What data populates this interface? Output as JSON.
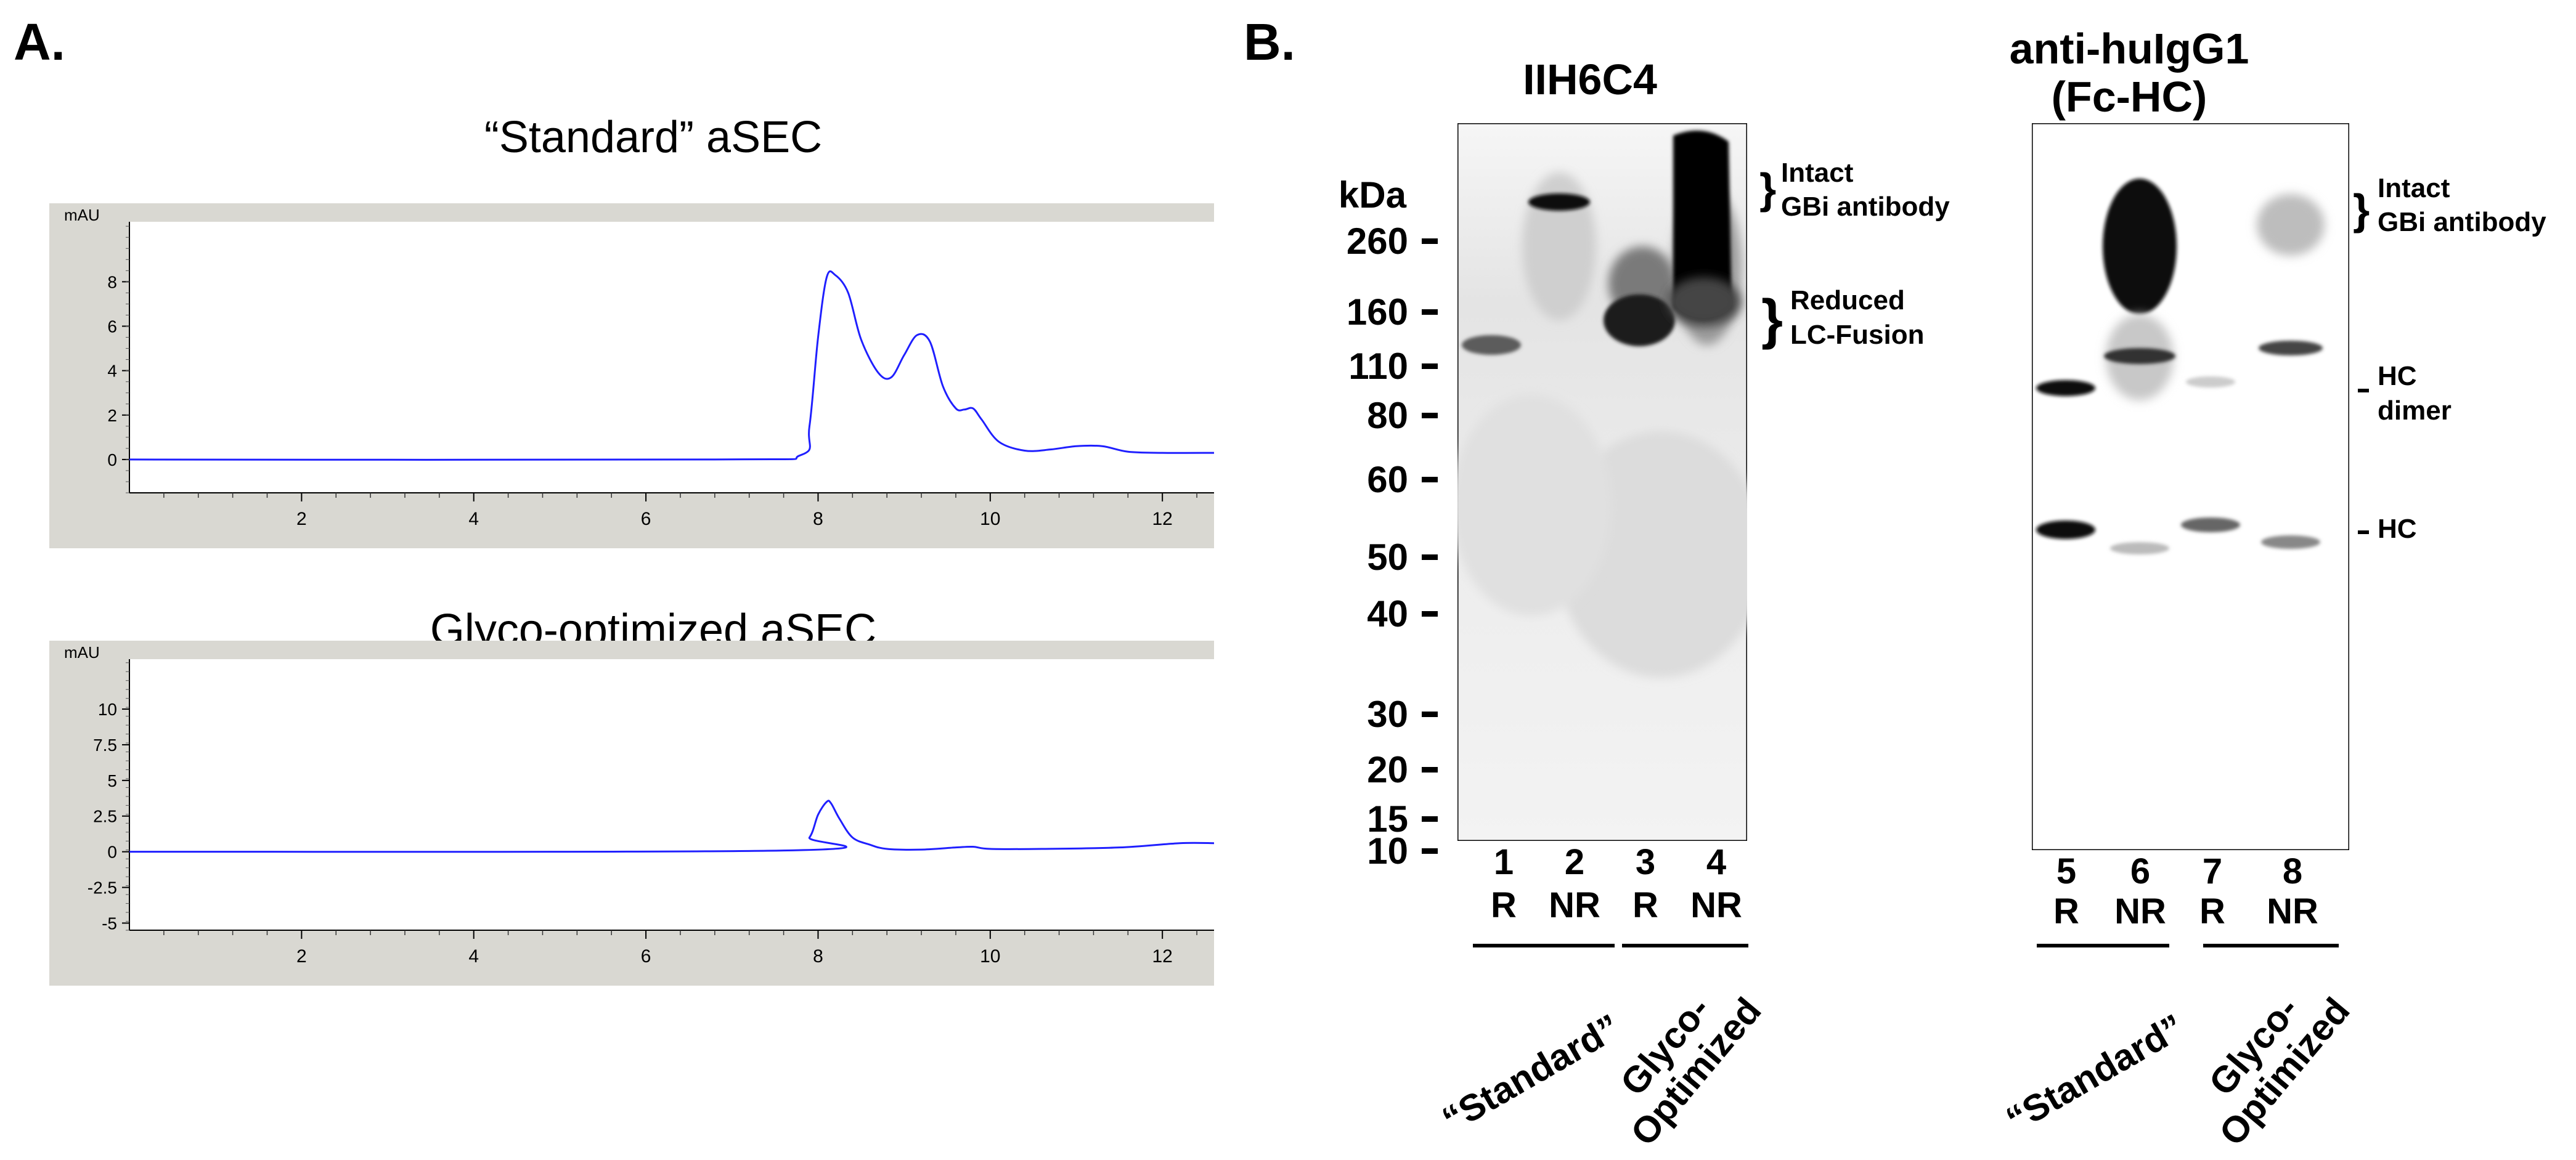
{
  "panel_a": {
    "label": "A.",
    "chart_data": [
      {
        "type": "line",
        "title": "“Standard” aSEC",
        "ylabel": "mAU",
        "xlabel": "",
        "xlim": [
          0,
          12.6
        ],
        "ylim": [
          -1.5,
          10.7
        ],
        "xticks": [
          2,
          4,
          6,
          8,
          10,
          12
        ],
        "yticks": [
          0,
          2,
          4,
          6,
          8
        ],
        "ytick_labels": [
          "0",
          "2",
          "4",
          "6",
          "8"
        ],
        "series": [
          {
            "name": "Standard",
            "color": "#1f1fff",
            "x": [
              0,
              6.8,
              7.8,
              7.9,
              8.0,
              8.1,
              8.2,
              8.35,
              8.5,
              8.7,
              8.85,
              9.0,
              9.15,
              9.3,
              9.45,
              9.6,
              9.7,
              9.8,
              9.9,
              10.1,
              10.4,
              10.7,
              11.0,
              11.3,
              11.6,
              12.0,
              12.6
            ],
            "y": [
              0,
              0,
              0.2,
              1.5,
              5.5,
              8.2,
              8.3,
              7.5,
              5.4,
              3.9,
              3.7,
              4.7,
              5.6,
              5.3,
              3.3,
              2.3,
              2.25,
              2.3,
              1.8,
              0.8,
              0.4,
              0.45,
              0.6,
              0.6,
              0.35,
              0.3,
              0.3
            ]
          }
        ]
      },
      {
        "type": "line",
        "title": "Glyco-optimized  aSEC",
        "ylabel": "mAU",
        "xlabel": "",
        "xlim": [
          0,
          12.6
        ],
        "ylim": [
          -5.5,
          13.5
        ],
        "xticks": [
          2,
          4,
          6,
          8,
          10,
          12
        ],
        "yticks": [
          10,
          7.5,
          5,
          2.5,
          0,
          -2.5,
          -5
        ],
        "ytick_labels": [
          "10",
          "7.5",
          "5",
          "2.5",
          "0",
          "-2.5",
          "-5"
        ],
        "series": [
          {
            "name": "Glyco-optimized",
            "color": "#1f1fff",
            "x": [
              0,
              7.7,
              7.9,
              8.0,
              8.1,
              8.15,
              8.25,
              8.4,
              8.6,
              8.8,
              9.2,
              9.6,
              9.8,
              10.0,
              10.6,
              11.5,
              12.2,
              12.6
            ],
            "y": [
              0,
              0.1,
              1.0,
              2.6,
              3.5,
              3.4,
              2.3,
              1.0,
              0.5,
              0.2,
              0.15,
              0.3,
              0.35,
              0.2,
              0.2,
              0.3,
              0.6,
              0.6
            ]
          }
        ]
      }
    ]
  },
  "panel_b": {
    "label": "B.",
    "blot_left": {
      "title": "IIH6C4",
      "kda_label": "kDa",
      "markers": [
        "260",
        "160",
        "110",
        "80",
        "60",
        "50",
        "40",
        "30",
        "20",
        "15",
        "10"
      ],
      "lane_numbers": [
        "1",
        "2",
        "3",
        "4"
      ],
      "lane_types": [
        "R",
        "NR",
        "R",
        "NR"
      ],
      "annotations": [
        "Intact",
        "GBi antibody",
        "Reduced",
        "LC-Fusion"
      ],
      "groups": [
        "“Standard”",
        "Glyco-",
        "Optimized"
      ]
    },
    "blot_right": {
      "title_line1": "anti-huIgG1",
      "title_line2": "(Fc-HC)",
      "lane_numbers": [
        "5",
        "6",
        "7",
        "8"
      ],
      "lane_types": [
        "R",
        "NR",
        "R",
        "NR"
      ],
      "annotations": [
        "Intact",
        "GBi antibody",
        "HC",
        "dimer",
        "HC"
      ],
      "groups": [
        "“Standard”",
        "Glyco-",
        "Optimized"
      ]
    }
  }
}
